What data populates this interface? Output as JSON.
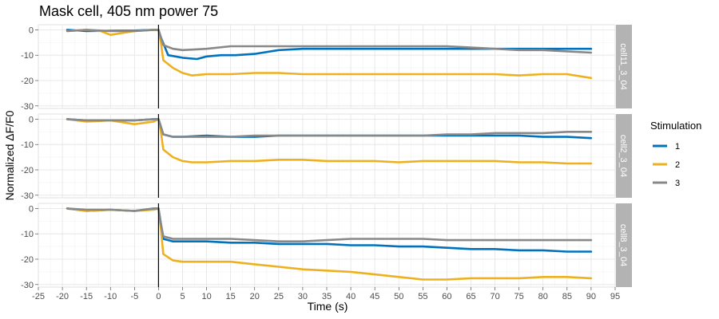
{
  "chart_data": {
    "type": "line",
    "title": "Mask cell, 405 nm power 75",
    "xlabel": "Time (s)",
    "ylabel": "Normalized ΔF/F0",
    "xlim": [
      -25,
      95
    ],
    "ylim": [
      -31,
      2
    ],
    "x_ticks": [
      "-25",
      "-20",
      "-15",
      "-10",
      "-5",
      "0",
      "5",
      "10",
      "15",
      "20",
      "25",
      "30",
      "35",
      "40",
      "45",
      "50",
      "55",
      "60",
      "65",
      "70",
      "75",
      "80",
      "85",
      "90",
      "95"
    ],
    "y_ticks": [
      "0",
      "-10",
      "-20",
      "-30"
    ],
    "vline_x": 0,
    "grid": true,
    "legend": {
      "title": "Stimulation",
      "position": "right",
      "entries": [
        "1",
        "2",
        "3"
      ]
    },
    "series_colors": [
      "#0072BD",
      "#EDB120",
      "#888888"
    ],
    "panels": [
      {
        "label": "cell11_3_04",
        "series": [
          {
            "name": "1",
            "x": [
              -19,
              -15,
              -10,
              -5,
              -1,
              0,
              0.5,
              2,
              5,
              8,
              10,
              13,
              16,
              20,
              25,
              30,
              35,
              40,
              45,
              50,
              55,
              60,
              65,
              70,
              75,
              80,
              85,
              90
            ],
            "y": [
              0,
              -0.5,
              -0.4,
              -0.3,
              0,
              0,
              -3,
              -10,
              -11,
              -11.5,
              -10.5,
              -10,
              -10,
              -9.5,
              -8,
              -7.5,
              -7.5,
              -7.5,
              -7.5,
              -7.5,
              -7.5,
              -7.5,
              -7.5,
              -7.5,
              -7.5,
              -7.5,
              -7.5,
              -7.5
            ]
          },
          {
            "name": "2",
            "x": [
              -19,
              -15,
              -12,
              -10,
              -5,
              -1,
              0,
              0.5,
              1,
              3,
              5,
              7,
              10,
              15,
              20,
              25,
              30,
              35,
              40,
              45,
              50,
              55,
              60,
              65,
              70,
              75,
              80,
              85,
              90
            ],
            "y": [
              -0.5,
              0,
              -0.5,
              -2,
              -0.5,
              0,
              0,
              -5,
              -12,
              -15,
              -17,
              -18,
              -17.5,
              -17.5,
              -17,
              -17,
              -17.5,
              -17.5,
              -17.5,
              -17.5,
              -17.5,
              -17.5,
              -17.5,
              -17.5,
              -17.5,
              -18,
              -17.5,
              -17.5,
              -19
            ]
          },
          {
            "name": "3",
            "x": [
              -19,
              -15,
              -10,
              -5,
              -1,
              0,
              0.5,
              1,
              3,
              5,
              10,
              15,
              20,
              25,
              30,
              35,
              40,
              45,
              50,
              55,
              60,
              65,
              70,
              75,
              80,
              85,
              90
            ],
            "y": [
              -0.5,
              0,
              -0.5,
              -0.5,
              0,
              0,
              -3,
              -6,
              -7.5,
              -8,
              -7.5,
              -6.5,
              -6.5,
              -6.5,
              -6.5,
              -6.5,
              -6.5,
              -6.5,
              -6.5,
              -6.5,
              -6.5,
              -7,
              -7.5,
              -8,
              -8,
              -8.5,
              -9
            ]
          }
        ]
      },
      {
        "label": "cell2_3_04",
        "series": [
          {
            "name": "1",
            "x": [
              -19,
              -15,
              -10,
              -5,
              -1,
              0,
              0.5,
              1,
              3,
              5,
              10,
              15,
              20,
              25,
              30,
              35,
              40,
              45,
              50,
              55,
              60,
              65,
              70,
              75,
              80,
              85,
              90
            ],
            "y": [
              0,
              -0.5,
              -0.5,
              -0.5,
              0,
              0,
              -3,
              -6,
              -7,
              -7,
              -6.5,
              -7,
              -7,
              -6.5,
              -6.5,
              -6.5,
              -6.5,
              -6.5,
              -6.5,
              -6.5,
              -6.5,
              -6.5,
              -6.5,
              -6.5,
              -7,
              -7,
              -7.5
            ]
          },
          {
            "name": "2",
            "x": [
              -19,
              -15,
              -10,
              -5,
              -1,
              0,
              0.5,
              1,
              3,
              5,
              7,
              10,
              15,
              20,
              25,
              30,
              35,
              40,
              45,
              50,
              55,
              60,
              65,
              70,
              75,
              80,
              85,
              90
            ],
            "y": [
              0,
              -1,
              -0.5,
              -2,
              -1,
              0,
              -5,
              -12,
              -15,
              -16.5,
              -17,
              -17,
              -16.5,
              -16.5,
              -16,
              -16,
              -16.5,
              -16.5,
              -16.5,
              -17,
              -16.5,
              -16.5,
              -16.5,
              -16.5,
              -17,
              -17,
              -17.5,
              -17.5
            ]
          },
          {
            "name": "3",
            "x": [
              -19,
              -15,
              -10,
              -5,
              -1,
              0,
              0.5,
              1,
              3,
              5,
              10,
              15,
              20,
              25,
              30,
              35,
              40,
              45,
              50,
              55,
              60,
              65,
              70,
              75,
              80,
              85,
              90
            ],
            "y": [
              0,
              -0.5,
              -0.5,
              -0.5,
              0,
              0,
              -3,
              -6,
              -7,
              -7,
              -7,
              -7,
              -6.5,
              -6.5,
              -6.5,
              -6.5,
              -6.5,
              -6.5,
              -6.5,
              -6.5,
              -6,
              -6,
              -5.5,
              -5.5,
              -5.5,
              -5,
              -5
            ]
          }
        ]
      },
      {
        "label": "cell8_3_04",
        "series": [
          {
            "name": "1",
            "x": [
              -19,
              -15,
              -10,
              -5,
              -1,
              0,
              0.5,
              1,
              3,
              5,
              10,
              15,
              20,
              25,
              30,
              35,
              40,
              45,
              50,
              55,
              60,
              65,
              70,
              75,
              80,
              85,
              90
            ],
            "y": [
              0,
              -1,
              -0.5,
              -1,
              0,
              0,
              -6,
              -12,
              -13,
              -13,
              -13,
              -13.5,
              -13.5,
              -14,
              -14,
              -14,
              -14.5,
              -14.5,
              -15,
              -15,
              -15.5,
              -16,
              -16,
              -16.5,
              -16.5,
              -17,
              -17
            ]
          },
          {
            "name": "2",
            "x": [
              -19,
              -15,
              -10,
              -5,
              -1,
              0,
              0.5,
              1,
              3,
              5,
              10,
              15,
              20,
              25,
              30,
              35,
              40,
              45,
              50,
              55,
              60,
              65,
              70,
              75,
              80,
              85,
              90
            ],
            "y": [
              0,
              -1,
              -0.5,
              -1,
              -0.5,
              0,
              -8,
              -18,
              -20.5,
              -21,
              -21,
              -21,
              -22,
              -23,
              -24,
              -24.5,
              -25,
              -26,
              -27,
              -28,
              -28,
              -27.5,
              -27.5,
              -27.5,
              -27,
              -27,
              -27.5
            ]
          },
          {
            "name": "3",
            "x": [
              -19,
              -15,
              -10,
              -5,
              -1,
              0,
              0.5,
              1,
              3,
              5,
              10,
              15,
              20,
              25,
              30,
              35,
              40,
              45,
              50,
              55,
              60,
              65,
              70,
              75,
              80,
              85,
              90
            ],
            "y": [
              0,
              -0.5,
              -0.5,
              -1,
              0,
              0,
              -6,
              -11,
              -12,
              -12,
              -12,
              -12,
              -12.5,
              -13,
              -13,
              -12.5,
              -12,
              -12,
              -12,
              -12,
              -12.5,
              -12.5,
              -12.5,
              -12.5,
              -12.5,
              -12.5,
              -12.5
            ]
          }
        ]
      }
    ]
  }
}
